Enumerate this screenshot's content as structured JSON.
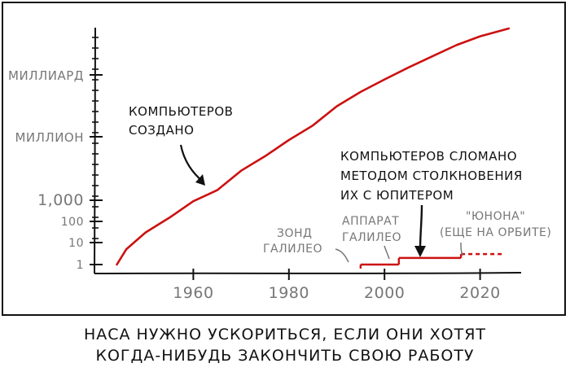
{
  "chart_data": {
    "type": "line",
    "y_scale": "log-like (broken scale)",
    "xlim": [
      1940,
      2028
    ],
    "x_ticks": [
      1960,
      1980,
      2000,
      2020
    ],
    "y_ticks": [
      {
        "value": 1,
        "label": "1"
      },
      {
        "value": 10,
        "label": "10"
      },
      {
        "value": 100,
        "label": "100"
      },
      {
        "value": 1000,
        "label": "1,000"
      },
      {
        "value": 1000000,
        "label": "МИЛЛИОН"
      },
      {
        "value": 1000000000,
        "label": "МИЛЛИАРД"
      }
    ],
    "series": [
      {
        "name": "computers-built",
        "color": "#cc1111",
        "points": [
          [
            1944,
            1
          ],
          [
            1946,
            5
          ],
          [
            1950,
            30
          ],
          [
            1955,
            150
          ],
          [
            1960,
            900
          ],
          [
            1965,
            3000
          ],
          [
            1970,
            25000
          ],
          [
            1975,
            120000
          ],
          [
            1980,
            700000
          ],
          [
            1985,
            3500000
          ],
          [
            1990,
            30000000
          ],
          [
            1995,
            150000000
          ],
          [
            2000,
            600000000
          ],
          [
            2005,
            2500000000
          ],
          [
            2010,
            10000000000
          ],
          [
            2015,
            40000000000
          ],
          [
            2020,
            120000000000
          ],
          [
            2026,
            400000000000
          ]
        ]
      },
      {
        "name": "computers-destroyed",
        "color": "#cc1111",
        "segments": [
          {
            "x": [
              1995,
              2003
            ],
            "y": 1,
            "style": "solid"
          },
          {
            "x": [
              2003,
              2016
            ],
            "y": 2,
            "style": "solid"
          },
          {
            "x": [
              2016,
              2025
            ],
            "y": 3,
            "style": "dashed"
          }
        ]
      }
    ],
    "annotations": {
      "built": [
        "КОМПЬЮТЕРОВ",
        "СОЗДАНО"
      ],
      "destroyed": [
        "КОМПЬЮТЕРОВ СЛОМАНО",
        "МЕТОДОМ СТОЛКНОВЕНИЯ",
        "ИХ С ЮПИТЕРОМ"
      ],
      "galileo_probe": [
        "ЗОНД",
        "ГАЛИЛЕО"
      ],
      "galileo_craft": [
        "АППАРАТ",
        "ГАЛИЛЕО"
      ],
      "juno": [
        "\"ЮНОНА\"",
        "(ЕЩЕ НА ОРБИТЕ)"
      ]
    }
  },
  "caption": {
    "line1": "НАСА НУЖНО УСКОРИТЬСЯ, ЕСЛИ ОНИ ХОТЯТ",
    "line2": "КОГДА-НИБУДЬ ЗАКОНЧИТЬ СВОЮ РАБОТУ"
  },
  "colors": {
    "data": "#cc1111",
    "axis": "#111111",
    "tick_label": "#777777",
    "annotation": "#111111",
    "note": "#777777"
  }
}
